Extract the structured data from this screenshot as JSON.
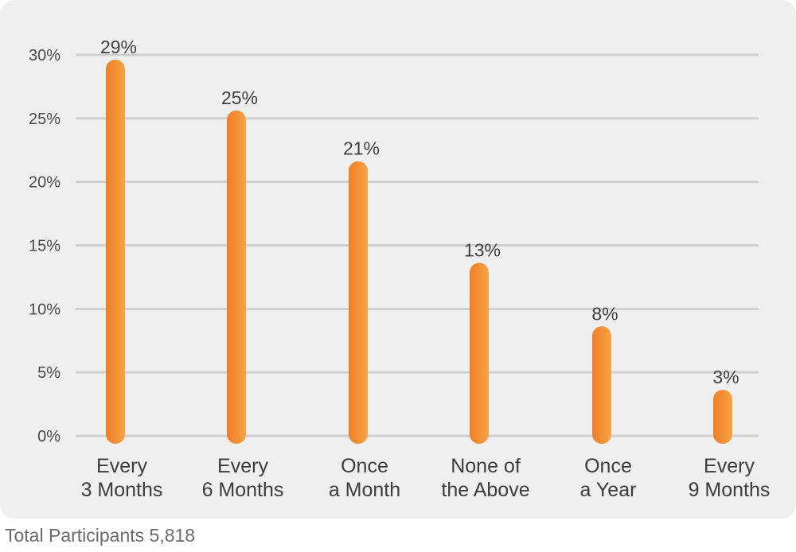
{
  "colors": {
    "panel": "#efefef",
    "grid": "#cfcfcf",
    "bar_light": "#f6a445",
    "bar_dark": "#ef7d27"
  },
  "chart_data": {
    "type": "bar",
    "categories": [
      [
        "Every",
        "3 Months"
      ],
      [
        "Every",
        "6 Months"
      ],
      [
        "Once",
        "a Month"
      ],
      [
        "None of",
        "the Above"
      ],
      [
        "Once",
        "a Year"
      ],
      [
        "Every",
        "9 Months"
      ]
    ],
    "values": [
      29,
      25,
      21,
      13,
      8,
      3
    ],
    "value_labels": [
      "29%",
      "25%",
      "21%",
      "13%",
      "8%",
      "3%"
    ],
    "y_ticks": [
      0,
      5,
      10,
      15,
      20,
      25,
      30
    ],
    "y_tick_labels": [
      "0%",
      "5%",
      "10%",
      "15%",
      "20%",
      "25%",
      "30%"
    ],
    "ylim": [
      0,
      30
    ],
    "grid": true
  },
  "footnote": "Total Participants 5,818"
}
